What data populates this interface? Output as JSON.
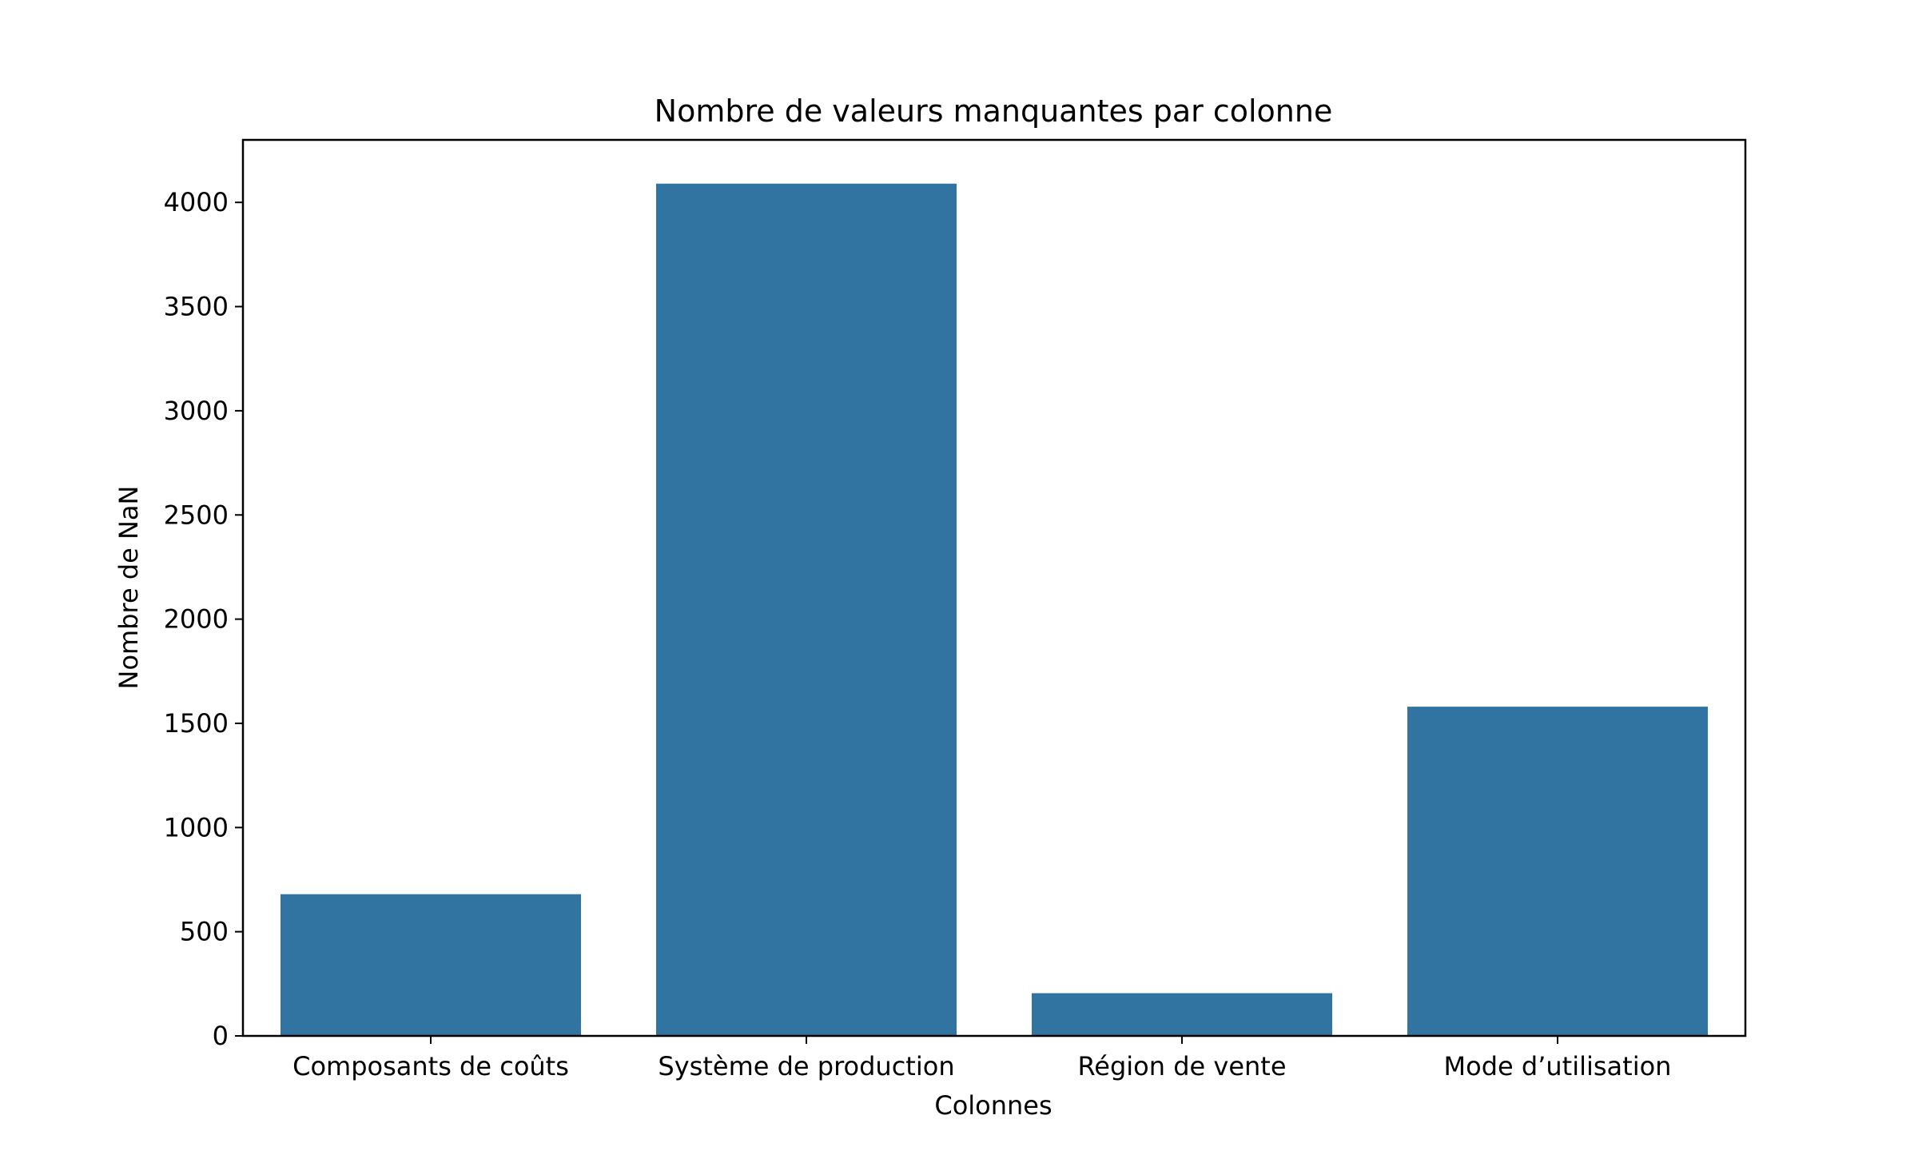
{
  "chart_data": {
    "type": "bar",
    "title": "Nombre de valeurs manquantes par colonne",
    "xlabel": "Colonnes",
    "ylabel": "Nombre de NaN",
    "categories": [
      "Composants de coûts",
      "Système de production",
      "Région de vente",
      "Mode d’utilisation"
    ],
    "values": [
      680,
      4090,
      205,
      1580
    ],
    "ylim": [
      0,
      4300
    ],
    "yticks": [
      0,
      500,
      1000,
      1500,
      2000,
      2500,
      3000,
      3500,
      4000
    ],
    "bar_color": "#3274a1",
    "grid": false,
    "legend": "none"
  }
}
